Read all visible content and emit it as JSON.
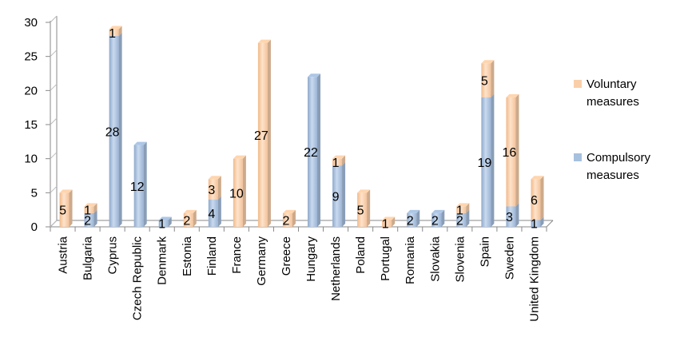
{
  "chart_data": {
    "type": "bar",
    "stacked": true,
    "categories": [
      "Austria",
      "Bulgaria",
      "Cyprus",
      "Czech Republic",
      "Denmark",
      "Estonia",
      "Finland",
      "France",
      "Germany",
      "Greece",
      "Hungary",
      "Netherlands",
      "Poland",
      "Portugal",
      "Romania",
      "Slovakia",
      "Slovenia",
      "Spain",
      "Sweden",
      "United Kingdom"
    ],
    "series": [
      {
        "name": "Compulsory measures",
        "color": "#a7c0de",
        "values": [
          0,
          2,
          28,
          12,
          1,
          0,
          4,
          0,
          0,
          0,
          22,
          9,
          0,
          0,
          2,
          2,
          2,
          19,
          3,
          1
        ],
        "labels": [
          "",
          "2",
          "28",
          "12",
          "1",
          "",
          "4",
          "",
          "",
          "",
          "22",
          "9",
          "",
          "",
          "2",
          "2",
          "2",
          "19",
          "3",
          "1"
        ]
      },
      {
        "name": "Voluntary measures",
        "color": "#f9cfa9",
        "values": [
          5,
          1,
          1,
          0,
          0,
          2,
          3,
          10,
          27,
          2,
          0,
          1,
          5,
          1,
          0,
          0,
          1,
          5,
          16,
          6
        ],
        "labels": [
          "5",
          "1",
          "1",
          "",
          "",
          "2",
          "3",
          "10",
          "27",
          "2",
          "",
          "1",
          "5",
          "1",
          "",
          "",
          "1",
          "5",
          "16",
          "6"
        ]
      }
    ],
    "ylim": [
      0,
      30
    ],
    "yticks": [
      "0",
      "5",
      "10",
      "15",
      "20",
      "25",
      "30"
    ],
    "grid": false,
    "legend": "right"
  }
}
